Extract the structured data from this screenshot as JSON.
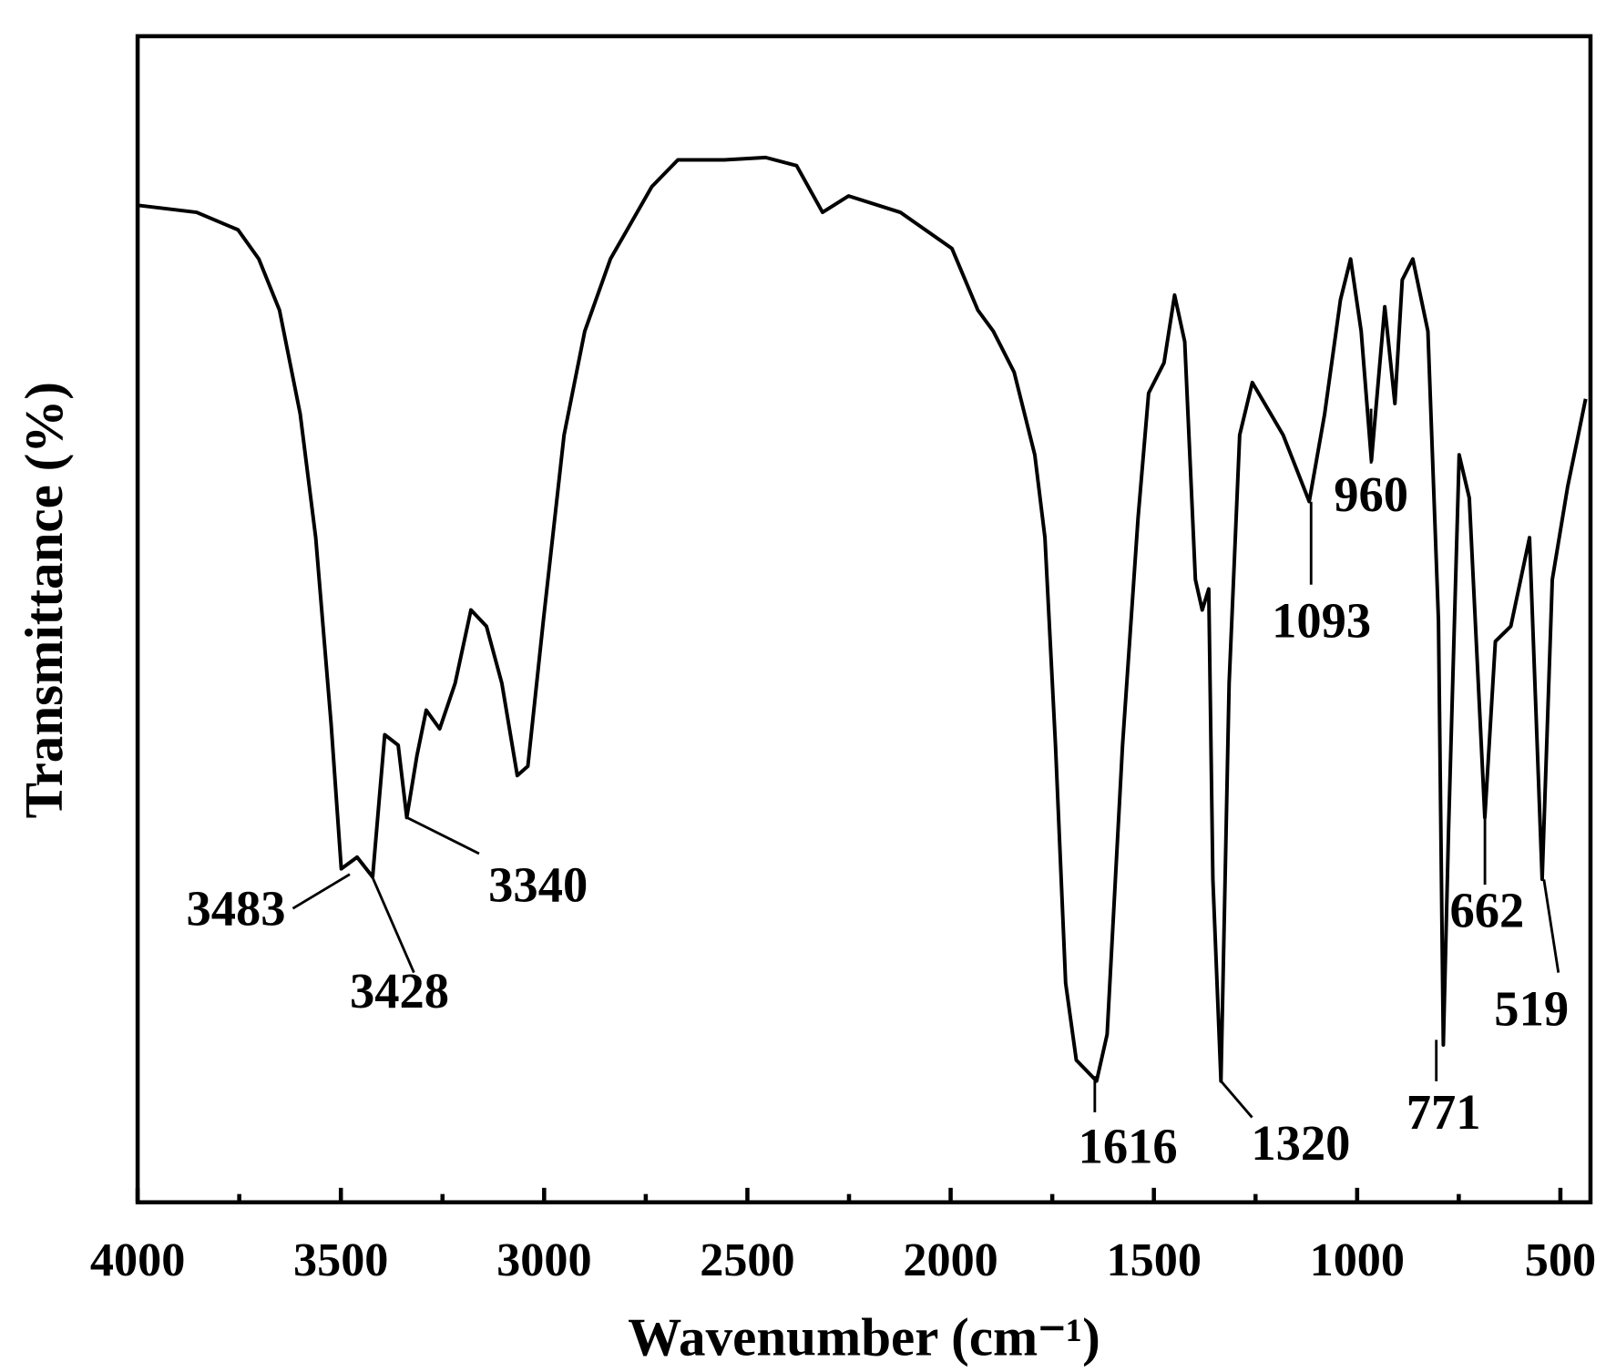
{
  "chart_data": {
    "type": "line",
    "x_label": "Wavenumber (cm⁻¹)",
    "y_label": "Transmittance (%)",
    "color": "#000000",
    "xlim": [
      4000,
      426
    ],
    "xticks": [
      4000,
      3500,
      3000,
      2500,
      2000,
      1500,
      1000,
      500
    ],
    "xminorticks": [
      3750,
      3250,
      2750,
      2250,
      1750,
      1250,
      750
    ],
    "ylim": [
      0,
      100
    ],
    "x": [
      4000,
      3855,
      3753,
      3702,
      3651,
      3600,
      3562,
      3524,
      3499,
      3460,
      3422,
      3392,
      3359,
      3338,
      3313,
      3290,
      3257,
      3219,
      3180,
      3142,
      3104,
      3066,
      3040,
      3002,
      2951,
      2900,
      2837,
      2781,
      2735,
      2671,
      2557,
      2455,
      2379,
      2315,
      2251,
      2124,
      1997,
      1933,
      1895,
      1844,
      1793,
      1768,
      1742,
      1717,
      1691,
      1641,
      1615,
      1577,
      1539,
      1513,
      1475,
      1449,
      1424,
      1398,
      1381,
      1365,
      1355,
      1335,
      1315,
      1289,
      1258,
      1182,
      1118,
      1080,
      1041,
      1016,
      990,
      965,
      932,
      907,
      889,
      863,
      826,
      800,
      788,
      775,
      749,
      724,
      686,
      660,
      622,
      576,
      545,
      520,
      482,
      456,
      438
    ],
    "values": [
      85.5,
      84.9,
      83.4,
      80.9,
      76.5,
      67.6,
      57.0,
      41.0,
      28.6,
      29.6,
      27.9,
      40.1,
      39.2,
      33.0,
      38.3,
      42.2,
      40.6,
      44.5,
      50.8,
      49.4,
      44.5,
      36.6,
      37.4,
      49.9,
      65.8,
      74.7,
      80.9,
      84.3,
      87.1,
      89.4,
      89.4,
      89.6,
      88.9,
      84.9,
      86.3,
      84.9,
      81.8,
      76.5,
      74.7,
      71.2,
      64.1,
      57.0,
      39.2,
      18.8,
      12.2,
      10.4,
      14.4,
      39.2,
      58.7,
      69.4,
      72.0,
      77.8,
      73.8,
      53.4,
      50.8,
      52.6,
      27.7,
      10.4,
      44.5,
      65.8,
      70.3,
      65.8,
      60.1,
      67.6,
      77.4,
      80.9,
      74.7,
      63.6,
      76.8,
      68.5,
      79.1,
      80.9,
      74.7,
      49.9,
      13.5,
      32.1,
      64.1,
      60.4,
      33.0,
      48.1,
      49.4,
      57.0,
      27.7,
      53.4,
      61.4,
      65.8,
      68.9
    ],
    "annotations": [
      "3483",
      "3428",
      "3340",
      "1616",
      "1320",
      "1093",
      "960",
      "771",
      "662",
      "519"
    ]
  }
}
